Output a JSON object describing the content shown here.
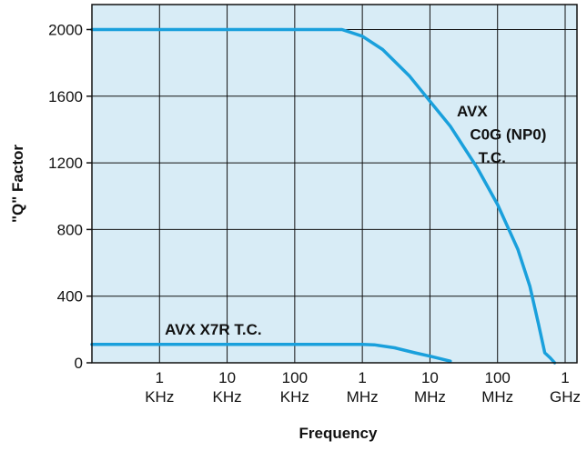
{
  "chart_data": {
    "type": "line",
    "xlabel": "Frequency",
    "ylabel": "\"Q\" Factor",
    "x_scale": "log",
    "xlim": [
      100,
      1000000000
    ],
    "ylim": [
      0,
      2150
    ],
    "grid": true,
    "background_color": "#d8ecf6",
    "line_color": "#1aa0dc",
    "x_ticks": [
      {
        "value": 1000,
        "line1": "1",
        "line2": "KHz"
      },
      {
        "value": 10000,
        "line1": "10",
        "line2": "KHz"
      },
      {
        "value": 100000,
        "line1": "100",
        "line2": "KHz"
      },
      {
        "value": 1000000,
        "line1": "1",
        "line2": "MHz"
      },
      {
        "value": 10000000,
        "line1": "10",
        "line2": "MHz"
      },
      {
        "value": 100000000,
        "line1": "100",
        "line2": "MHz"
      },
      {
        "value": 1000000000,
        "line1": "1",
        "line2": "GHz"
      }
    ],
    "y_ticks": [
      {
        "value": 0,
        "label": "0"
      },
      {
        "value": 400,
        "label": "400"
      },
      {
        "value": 800,
        "label": "800"
      },
      {
        "value": 1200,
        "label": "1200"
      },
      {
        "value": 1600,
        "label": "1600"
      },
      {
        "value": 2000,
        "label": "2000"
      }
    ],
    "annotations": [
      {
        "name": "c0g-label-line-1",
        "text": "AVX",
        "x": 25000000,
        "y": 1480
      },
      {
        "name": "c0g-label-line-2",
        "text": "C0G (NP0)",
        "x": 39000000,
        "y": 1340
      },
      {
        "name": "c0g-label-line-3",
        "text": "T.C.",
        "x": 52000000,
        "y": 1200
      },
      {
        "name": "x7r-label",
        "text": "AVX X7R T.C.",
        "x": 1200,
        "y": 170
      }
    ],
    "series": [
      {
        "x": [
          100,
          1000,
          10000,
          100000,
          300000,
          500000,
          1000000,
          2000000,
          5000000,
          10000000,
          20000000,
          50000000,
          100000000,
          200000000,
          300000000,
          400000000,
          500000000,
          600000000,
          700000000
        ],
        "y": [
          2000,
          2000,
          2000,
          2000,
          2000,
          2000,
          1960,
          1880,
          1720,
          1570,
          1420,
          1170,
          950,
          680,
          460,
          240,
          60,
          30,
          0
        ]
      },
      {
        "x": [
          100,
          1000,
          10000,
          100000,
          1000000,
          1500000,
          3000000,
          6000000,
          10000000,
          20000000
        ],
        "y": [
          110,
          110,
          110,
          110,
          110,
          108,
          90,
          60,
          40,
          10
        ]
      }
    ]
  }
}
